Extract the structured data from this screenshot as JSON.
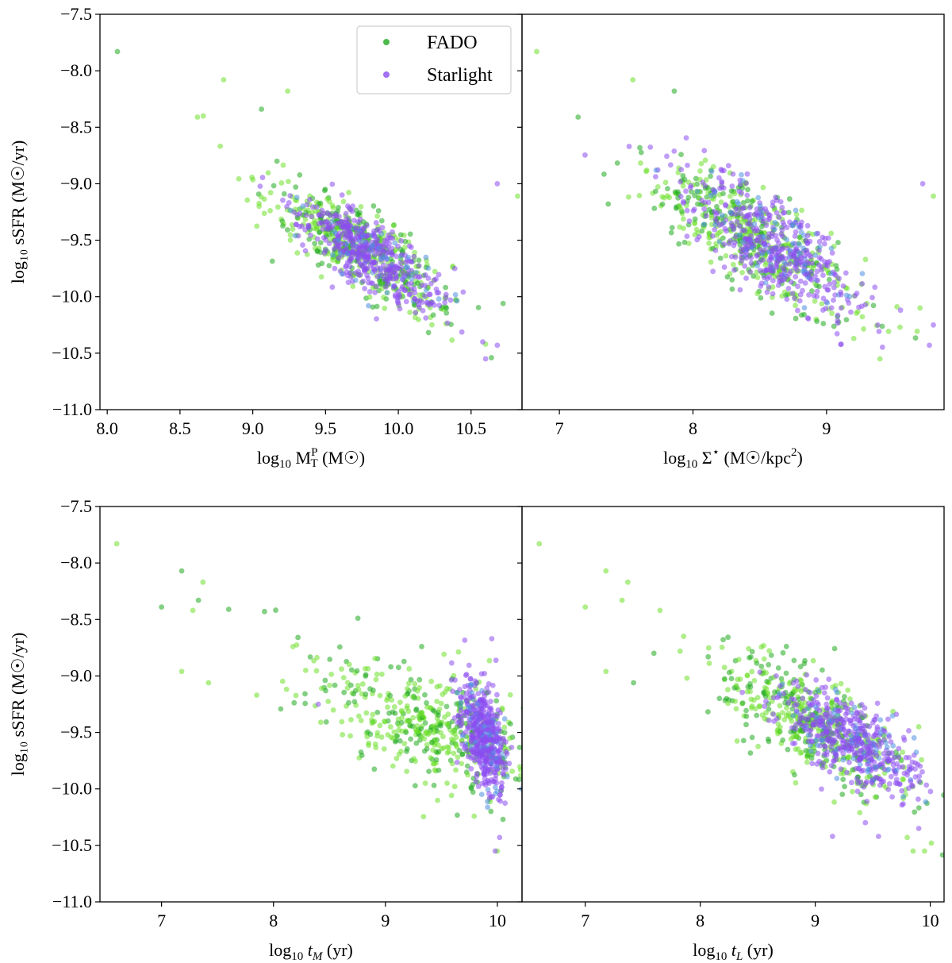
{
  "colors": {
    "fado_a": "#6ee02a",
    "fado_b": "#1faa1f",
    "starlight": "#8c4df0",
    "starlight_mix": "#4f8fe0"
  },
  "chart_data": [
    {
      "type": "scatter",
      "panel": "top-left",
      "ylabel": "log₁₀ sSFR (M☉/yr)",
      "xlabel_parts": {
        "prefix": "log",
        "sub": "10",
        "var": "M",
        "var_sup": "P",
        "var_sub": "T",
        "unit": "(M☉)"
      },
      "xlim": [
        7.95,
        10.85
      ],
      "ylim": [
        -11.0,
        -7.5
      ],
      "x_ticks": [
        "8.0",
        "8.5",
        "9.0",
        "9.5",
        "10.0",
        "10.5"
      ],
      "x_tick_values": [
        8.0,
        8.5,
        9.0,
        9.5,
        10.0,
        10.5
      ],
      "y_ticks": [
        "−11.0",
        "−10.5",
        "−10.0",
        "−9.5",
        "−9.0",
        "−8.5",
        "−8.0",
        "−7.5"
      ],
      "y_tick_values": [
        -11.0,
        -10.5,
        -10.0,
        -9.5,
        -9.0,
        -8.5,
        -8.0,
        -7.5
      ],
      "legend": {
        "placement": "top-right",
        "entries": [
          "FADO",
          "Starlight"
        ]
      },
      "series": [
        {
          "name": "FADO",
          "outliers": [
            [
              8.07,
              -7.83
            ],
            [
              8.62,
              -8.41
            ],
            [
              8.66,
              -8.4
            ],
            [
              8.8,
              -8.08
            ],
            [
              9.24,
              -8.18
            ],
            [
              9.06,
              -8.34
            ],
            [
              10.82,
              -9.11
            ],
            [
              10.6,
              -10.42
            ],
            [
              10.64,
              -10.54
            ],
            [
              10.72,
              -10.06
            ],
            [
              9.45,
              -9.72
            ]
          ],
          "cloud": {
            "x_mean": 9.72,
            "x_sd": 0.3,
            "y_intercept": -9.58,
            "slope": -0.7,
            "y_sd": 0.18,
            "n": 480
          }
        },
        {
          "name": "Starlight",
          "outliers": [
            [
              10.68,
              -9.0
            ],
            [
              10.68,
              -10.43
            ],
            [
              10.58,
              -10.4
            ],
            [
              10.6,
              -10.55
            ]
          ],
          "cloud": {
            "x_mean": 9.8,
            "x_sd": 0.25,
            "y_intercept": -9.62,
            "slope": -0.72,
            "y_sd": 0.16,
            "n": 480
          }
        }
      ]
    },
    {
      "type": "scatter",
      "panel": "top-right",
      "xlabel_parts": {
        "prefix": "log",
        "sub": "10",
        "var": "Σ",
        "var_sup": "⋆",
        "unit": "(M☉/kpc",
        "unit_sup": "2",
        "unit_end": ")"
      },
      "xlim": [
        6.72,
        9.88
      ],
      "ylim": [
        -11.0,
        -7.5
      ],
      "x_ticks": [
        "7",
        "8",
        "9"
      ],
      "x_tick_values": [
        7,
        8,
        9
      ],
      "series": [
        {
          "name": "FADO",
          "outliers": [
            [
              6.83,
              -7.83
            ],
            [
              7.14,
              -8.41
            ],
            [
              7.55,
              -8.08
            ],
            [
              7.86,
              -8.18
            ],
            [
              9.8,
              -9.11
            ],
            [
              9.55,
              -10.27
            ],
            [
              9.4,
              -10.55
            ],
            [
              9.7,
              -10.1
            ]
          ],
          "cloud": {
            "x_mean": 8.45,
            "x_sd": 0.38,
            "y_intercept": -9.5,
            "slope": -0.7,
            "y_sd": 0.22,
            "n": 480
          }
        },
        {
          "name": "Starlight",
          "outliers": [
            [
              9.72,
              -9.0
            ],
            [
              9.77,
              -10.43
            ],
            [
              9.8,
              -10.25
            ],
            [
              9.11,
              -10.42
            ]
          ],
          "cloud": {
            "x_mean": 8.6,
            "x_sd": 0.32,
            "y_intercept": -9.55,
            "slope": -0.7,
            "y_sd": 0.2,
            "n": 480
          }
        }
      ]
    },
    {
      "type": "scatter",
      "panel": "bottom-left",
      "ylabel": "log₁₀ sSFR (M☉/yr)",
      "xlabel_parts": {
        "prefix": "log",
        "sub": "10",
        "var": "t",
        "var_sub": "M",
        "unit": "(yr)",
        "italic": true
      },
      "xlim": [
        6.45,
        10.22
      ],
      "ylim": [
        -11.0,
        -7.5
      ],
      "x_ticks": [
        "7",
        "8",
        "9",
        "10"
      ],
      "x_tick_values": [
        7,
        8,
        9,
        10
      ],
      "y_ticks": [
        "−11.0",
        "−10.5",
        "−10.0",
        "−9.5",
        "−9.0",
        "−8.5",
        "−8.0",
        "−7.5"
      ],
      "y_tick_values": [
        -11.0,
        -10.5,
        -10.0,
        -9.5,
        -9.0,
        -8.5,
        -8.0,
        -7.5
      ],
      "series": [
        {
          "name": "FADO",
          "outliers": [
            [
              6.6,
              -7.83
            ],
            [
              7.0,
              -8.39
            ],
            [
              7.18,
              -8.07
            ],
            [
              7.28,
              -8.42
            ],
            [
              7.33,
              -8.33
            ],
            [
              7.37,
              -8.17
            ],
            [
              7.18,
              -8.96
            ],
            [
              7.42,
              -9.06
            ],
            [
              7.6,
              -8.41
            ],
            [
              7.85,
              -9.17
            ],
            [
              7.92,
              -8.43
            ],
            [
              10.05,
              -10.27
            ],
            [
              10.0,
              -10.55
            ]
          ],
          "cloud": {
            "x_mean": 9.4,
            "x_sd": 0.55,
            "y_intercept": -9.45,
            "slope": -0.3,
            "y_sd": 0.25,
            "n": 480
          }
        },
        {
          "name": "Starlight",
          "outliers": [
            [
              8.4,
              -9.25
            ],
            [
              9.95,
              -8.67
            ],
            [
              10.02,
              -10.43
            ],
            [
              9.98,
              -10.55
            ]
          ],
          "cloud": {
            "x_mean": 9.88,
            "x_sd": 0.1,
            "y_intercept": -9.55,
            "slope": -1.2,
            "y_sd": 0.22,
            "n": 480
          }
        }
      ]
    },
    {
      "type": "scatter",
      "panel": "bottom-right",
      "xlabel_parts": {
        "prefix": "log",
        "sub": "10",
        "var": "t",
        "var_sub": "L",
        "unit": "(yr)",
        "italic": true
      },
      "xlim": [
        6.45,
        10.12
      ],
      "ylim": [
        -11.0,
        -7.5
      ],
      "x_ticks": [
        "7",
        "8",
        "9",
        "10"
      ],
      "x_tick_values": [
        7,
        8,
        9,
        10
      ],
      "series": [
        {
          "name": "FADO",
          "outliers": [
            [
              6.6,
              -7.83
            ],
            [
              7.0,
              -8.39
            ],
            [
              7.18,
              -8.07
            ],
            [
              7.32,
              -8.33
            ],
            [
              7.37,
              -8.17
            ],
            [
              7.18,
              -8.96
            ],
            [
              7.42,
              -9.06
            ],
            [
              7.65,
              -8.42
            ],
            [
              9.85,
              -10.55
            ],
            [
              9.8,
              -10.43
            ],
            [
              9.9,
              -9.45
            ],
            [
              9.95,
              -10.55
            ]
          ],
          "cloud": {
            "x_mean": 9.0,
            "x_sd": 0.45,
            "y_intercept": -9.45,
            "slope": -0.55,
            "y_sd": 0.22,
            "n": 480
          }
        },
        {
          "name": "Starlight",
          "outliers": [
            [
              9.15,
              -10.42
            ],
            [
              9.55,
              -10.42
            ],
            [
              9.9,
              -10.35
            ],
            [
              9.1,
              -9.7
            ]
          ],
          "cloud": {
            "x_mean": 9.3,
            "x_sd": 0.3,
            "y_intercept": -9.55,
            "slope": -0.55,
            "y_sd": 0.18,
            "n": 480
          }
        }
      ]
    }
  ]
}
